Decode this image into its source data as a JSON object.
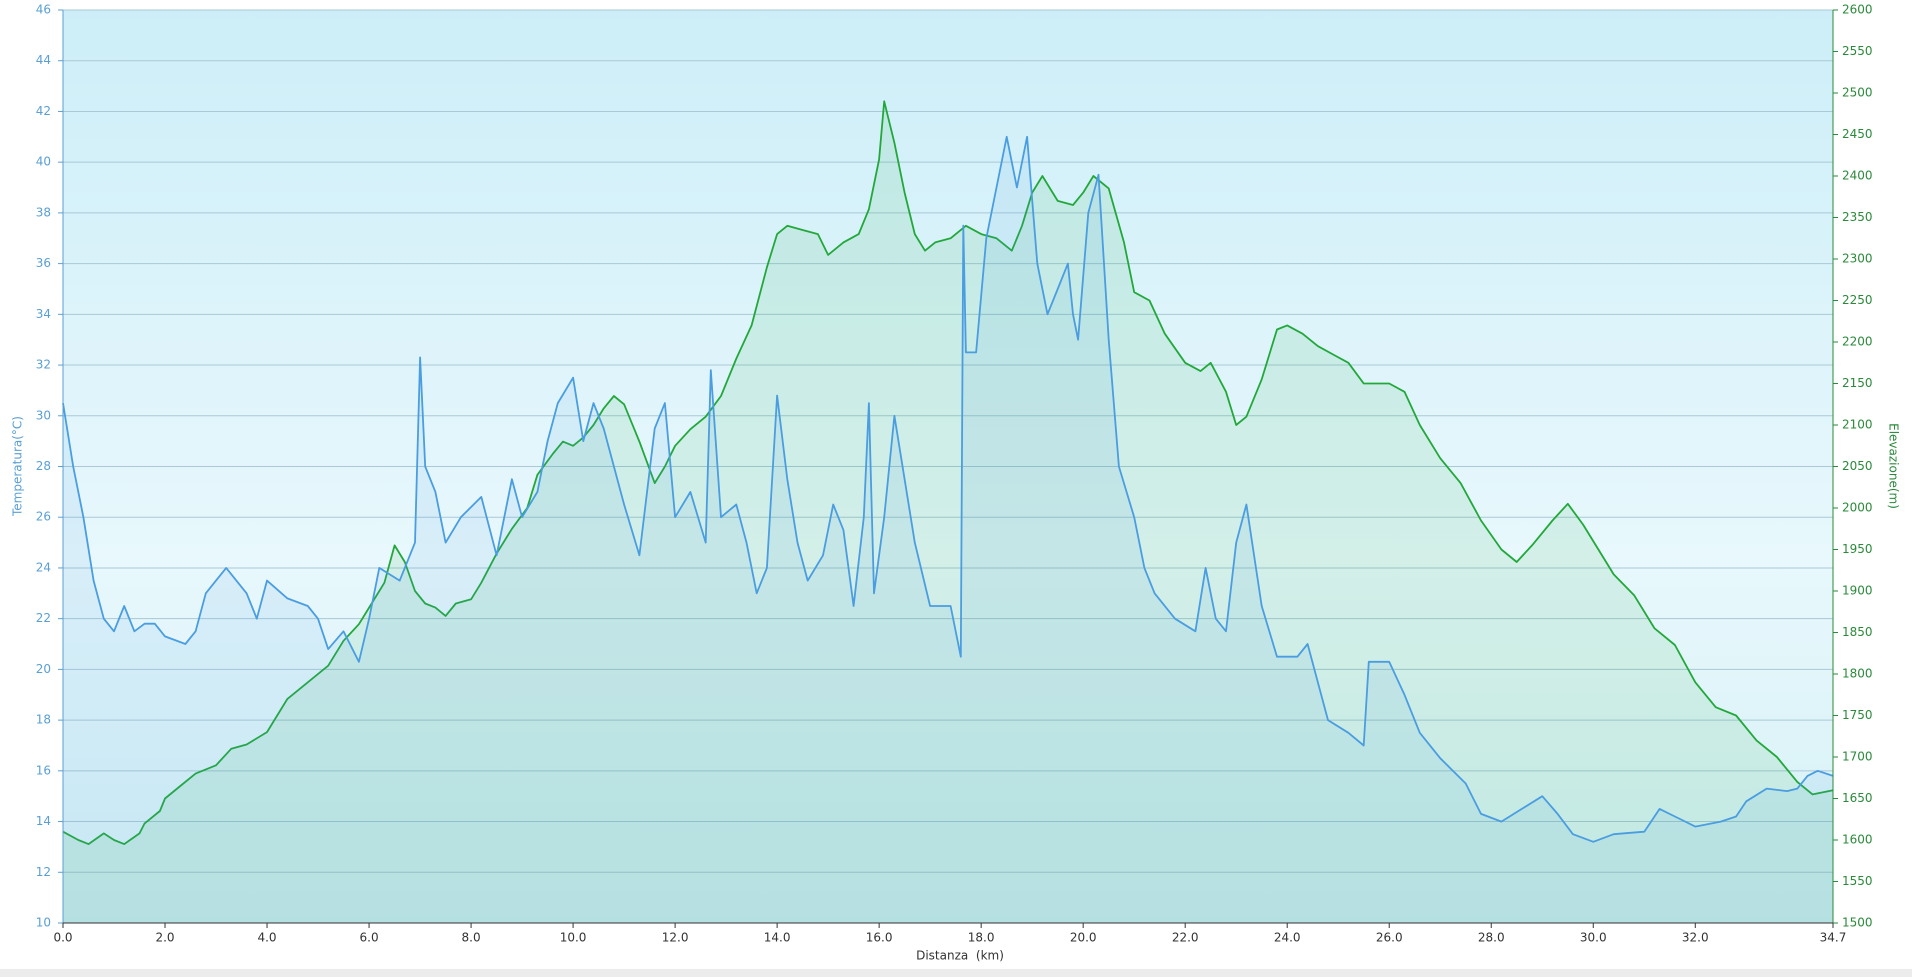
{
  "chart_data": {
    "type": "line",
    "xlabel": "Distanza  (km)",
    "ylabel": "Temperatura(°C)",
    "y2label": "Elevazione(m)",
    "xlim": [
      0,
      34.7
    ],
    "xticks": [
      {
        "value": 0,
        "label": "0.0"
      },
      {
        "value": 2,
        "label": "2.0"
      },
      {
        "value": 4,
        "label": "4.0"
      },
      {
        "value": 6,
        "label": "6.0"
      },
      {
        "value": 8,
        "label": "8.0"
      },
      {
        "value": 10,
        "label": "10.0"
      },
      {
        "value": 12,
        "label": "12.0"
      },
      {
        "value": 14,
        "label": "14.0"
      },
      {
        "value": 16,
        "label": "16.0"
      },
      {
        "value": 18,
        "label": "18.0"
      },
      {
        "value": 20,
        "label": "20.0"
      },
      {
        "value": 22,
        "label": "22.0"
      },
      {
        "value": 24,
        "label": "24.0"
      },
      {
        "value": 26,
        "label": "26.0"
      },
      {
        "value": 28,
        "label": "28.0"
      },
      {
        "value": 30,
        "label": "30.0"
      },
      {
        "value": 32,
        "label": "32.0"
      },
      34.7
    ],
    "ylim": [
      10,
      46
    ],
    "yticks": [
      10,
      12,
      14,
      16,
      18,
      20,
      22,
      24,
      26,
      28,
      30,
      32,
      34,
      36,
      38,
      40,
      42,
      44,
      46
    ],
    "y2lim": [
      1500,
      2600
    ],
    "y2ticks": [
      1500,
      1550,
      1600,
      1650,
      1700,
      1750,
      1800,
      1850,
      1900,
      1950,
      2000,
      2050,
      2100,
      2150,
      2200,
      2250,
      2300,
      2350,
      2400,
      2450,
      2500,
      2550,
      2600
    ],
    "grid": true,
    "series": [
      {
        "color": "#22a83a",
        "axis": "y2",
        "x": [
          0,
          0.3,
          0.5,
          0.8,
          1.0,
          1.2,
          1.5,
          1.6,
          1.9,
          2.0,
          2.3,
          2.6,
          3.0,
          3.3,
          3.6,
          4.0,
          4.4,
          4.8,
          5.2,
          5.5,
          5.8,
          6.0,
          6.3,
          6.5,
          6.7,
          6.9,
          7.1,
          7.3,
          7.5,
          7.7,
          8.0,
          8.2,
          8.5,
          8.8,
          9.1,
          9.3,
          9.6,
          9.8,
          10.0,
          10.2,
          10.4,
          10.6,
          10.8,
          11.0,
          11.3,
          11.6,
          11.8,
          12.0,
          12.3,
          12.6,
          12.9,
          13.2,
          13.5,
          13.8,
          14.0,
          14.2,
          14.5,
          14.8,
          15.0,
          15.3,
          15.6,
          15.8,
          16.0,
          16.1,
          16.3,
          16.5,
          16.7,
          16.9,
          17.1,
          17.4,
          17.7,
          18.0,
          18.3,
          18.6,
          18.8,
          19.0,
          19.2,
          19.5,
          19.8,
          20.0,
          20.2,
          20.5,
          20.8,
          21.0,
          21.3,
          21.6,
          22.0,
          22.3,
          22.5,
          22.8,
          23.0,
          23.2,
          23.5,
          23.8,
          24.0,
          24.3,
          24.6,
          24.9,
          25.2,
          25.5,
          26.0,
          26.3,
          26.6,
          27.0,
          27.4,
          27.8,
          28.2,
          28.5,
          28.8,
          29.2,
          29.5,
          29.8,
          30.1,
          30.4,
          30.8,
          31.2,
          31.6,
          32.0,
          32.4,
          32.8,
          33.2,
          33.6,
          34.0,
          34.3,
          34.7
        ],
        "values": [
          1610,
          1600,
          1595,
          1608,
          1600,
          1595,
          1608,
          1620,
          1635,
          1650,
          1665,
          1680,
          1690,
          1710,
          1715,
          1730,
          1770,
          1790,
          1810,
          1840,
          1860,
          1880,
          1910,
          1955,
          1935,
          1900,
          1885,
          1880,
          1870,
          1885,
          1890,
          1910,
          1945,
          1975,
          2000,
          2040,
          2065,
          2080,
          2075,
          2085,
          2100,
          2120,
          2135,
          2125,
          2080,
          2030,
          2050,
          2075,
          2095,
          2110,
          2135,
          2180,
          2220,
          2290,
          2330,
          2340,
          2335,
          2330,
          2305,
          2320,
          2330,
          2360,
          2420,
          2490,
          2440,
          2380,
          2330,
          2310,
          2320,
          2325,
          2340,
          2330,
          2325,
          2310,
          2340,
          2380,
          2400,
          2370,
          2365,
          2380,
          2400,
          2385,
          2320,
          2260,
          2250,
          2210,
          2175,
          2165,
          2175,
          2140,
          2100,
          2110,
          2155,
          2215,
          2220,
          2210,
          2195,
          2185,
          2175,
          2150,
          2150,
          2140,
          2100,
          2060,
          2030,
          1985,
          1950,
          1935,
          1955,
          1985,
          2005,
          1980,
          1950,
          1920,
          1895,
          1855,
          1835,
          1790,
          1760,
          1750,
          1720,
          1700,
          1670,
          1655,
          1660
        ]
      },
      {
        "color": "#4a9de0",
        "x": [
          0,
          0.2,
          0.4,
          0.6,
          0.8,
          1.0,
          1.2,
          1.4,
          1.6,
          1.8,
          2.0,
          2.4,
          2.6,
          2.8,
          3.0,
          3.2,
          3.6,
          3.8,
          4.0,
          4.4,
          4.8,
          5.0,
          5.2,
          5.5,
          5.8,
          6.0,
          6.2,
          6.6,
          6.9,
          7.0,
          7.1,
          7.3,
          7.5,
          7.8,
          8.2,
          8.5,
          8.8,
          9.0,
          9.3,
          9.5,
          9.7,
          10.0,
          10.2,
          10.4,
          10.6,
          10.8,
          11.0,
          11.3,
          11.6,
          11.8,
          12.0,
          12.3,
          12.6,
          12.7,
          12.9,
          13.2,
          13.4,
          13.6,
          13.8,
          14.0,
          14.2,
          14.4,
          14.6,
          14.9,
          15.1,
          15.3,
          15.5,
          15.7,
          15.8,
          15.9,
          16.1,
          16.3,
          16.5,
          16.7,
          17.0,
          17.4,
          17.6,
          17.65,
          17.7,
          17.9,
          18.1,
          18.3,
          18.5,
          18.7,
          18.9,
          19.1,
          19.3,
          19.5,
          19.7,
          19.8,
          19.9,
          20.1,
          20.3,
          20.5,
          20.7,
          21.0,
          21.2,
          21.4,
          21.8,
          22.2,
          22.4,
          22.6,
          22.8,
          23.0,
          23.2,
          23.5,
          23.8,
          24.2,
          24.4,
          24.6,
          24.8,
          25.2,
          25.5,
          25.6,
          26.0,
          26.3,
          26.6,
          27.0,
          27.5,
          27.8,
          28.2,
          28.6,
          29.0,
          29.3,
          29.6,
          30.0,
          30.4,
          31.0,
          31.3,
          31.6,
          32.0,
          32.5,
          32.8,
          33.0,
          33.4,
          33.8,
          34.0,
          34.2,
          34.4,
          34.7
        ],
        "values": [
          30.5,
          28,
          26,
          23.5,
          22,
          21.5,
          22.5,
          21.5,
          21.8,
          21.8,
          21.3,
          21,
          21.5,
          23,
          23.5,
          24,
          23,
          22,
          23.5,
          22.8,
          22.5,
          22,
          20.8,
          21.5,
          20.3,
          22,
          24,
          23.5,
          25,
          32.3,
          28,
          27,
          25,
          26,
          26.8,
          24.5,
          27.5,
          26,
          27,
          29,
          30.5,
          31.5,
          29,
          30.5,
          29.5,
          28,
          26.5,
          24.5,
          29.5,
          30.5,
          26,
          27,
          25,
          31.8,
          26,
          26.5,
          25,
          23,
          24,
          30.8,
          27.5,
          25,
          23.5,
          24.5,
          26.5,
          25.5,
          22.5,
          26,
          30.5,
          23,
          26,
          30,
          27.5,
          25,
          22.5,
          22.5,
          20.5,
          37.5,
          32.5,
          32.5,
          37,
          39,
          41,
          39,
          41,
          36,
          34,
          35,
          36,
          34,
          33,
          38,
          39.5,
          33,
          28,
          26,
          24,
          23,
          22,
          21.5,
          24,
          22,
          21.5,
          25,
          26.5,
          22.5,
          20.5,
          20.5,
          21,
          19.5,
          18,
          17.5,
          17,
          20.3,
          20.3,
          19,
          17.5,
          16.5,
          15.5,
          14.3,
          14,
          14.5,
          15,
          14.3,
          13.5,
          13.2,
          13.5,
          13.6,
          14.5,
          14.2,
          13.8,
          14,
          14.2,
          14.8,
          15.3,
          15.2,
          15.3,
          15.8,
          16,
          15.8
        ]
      }
    ]
  }
}
